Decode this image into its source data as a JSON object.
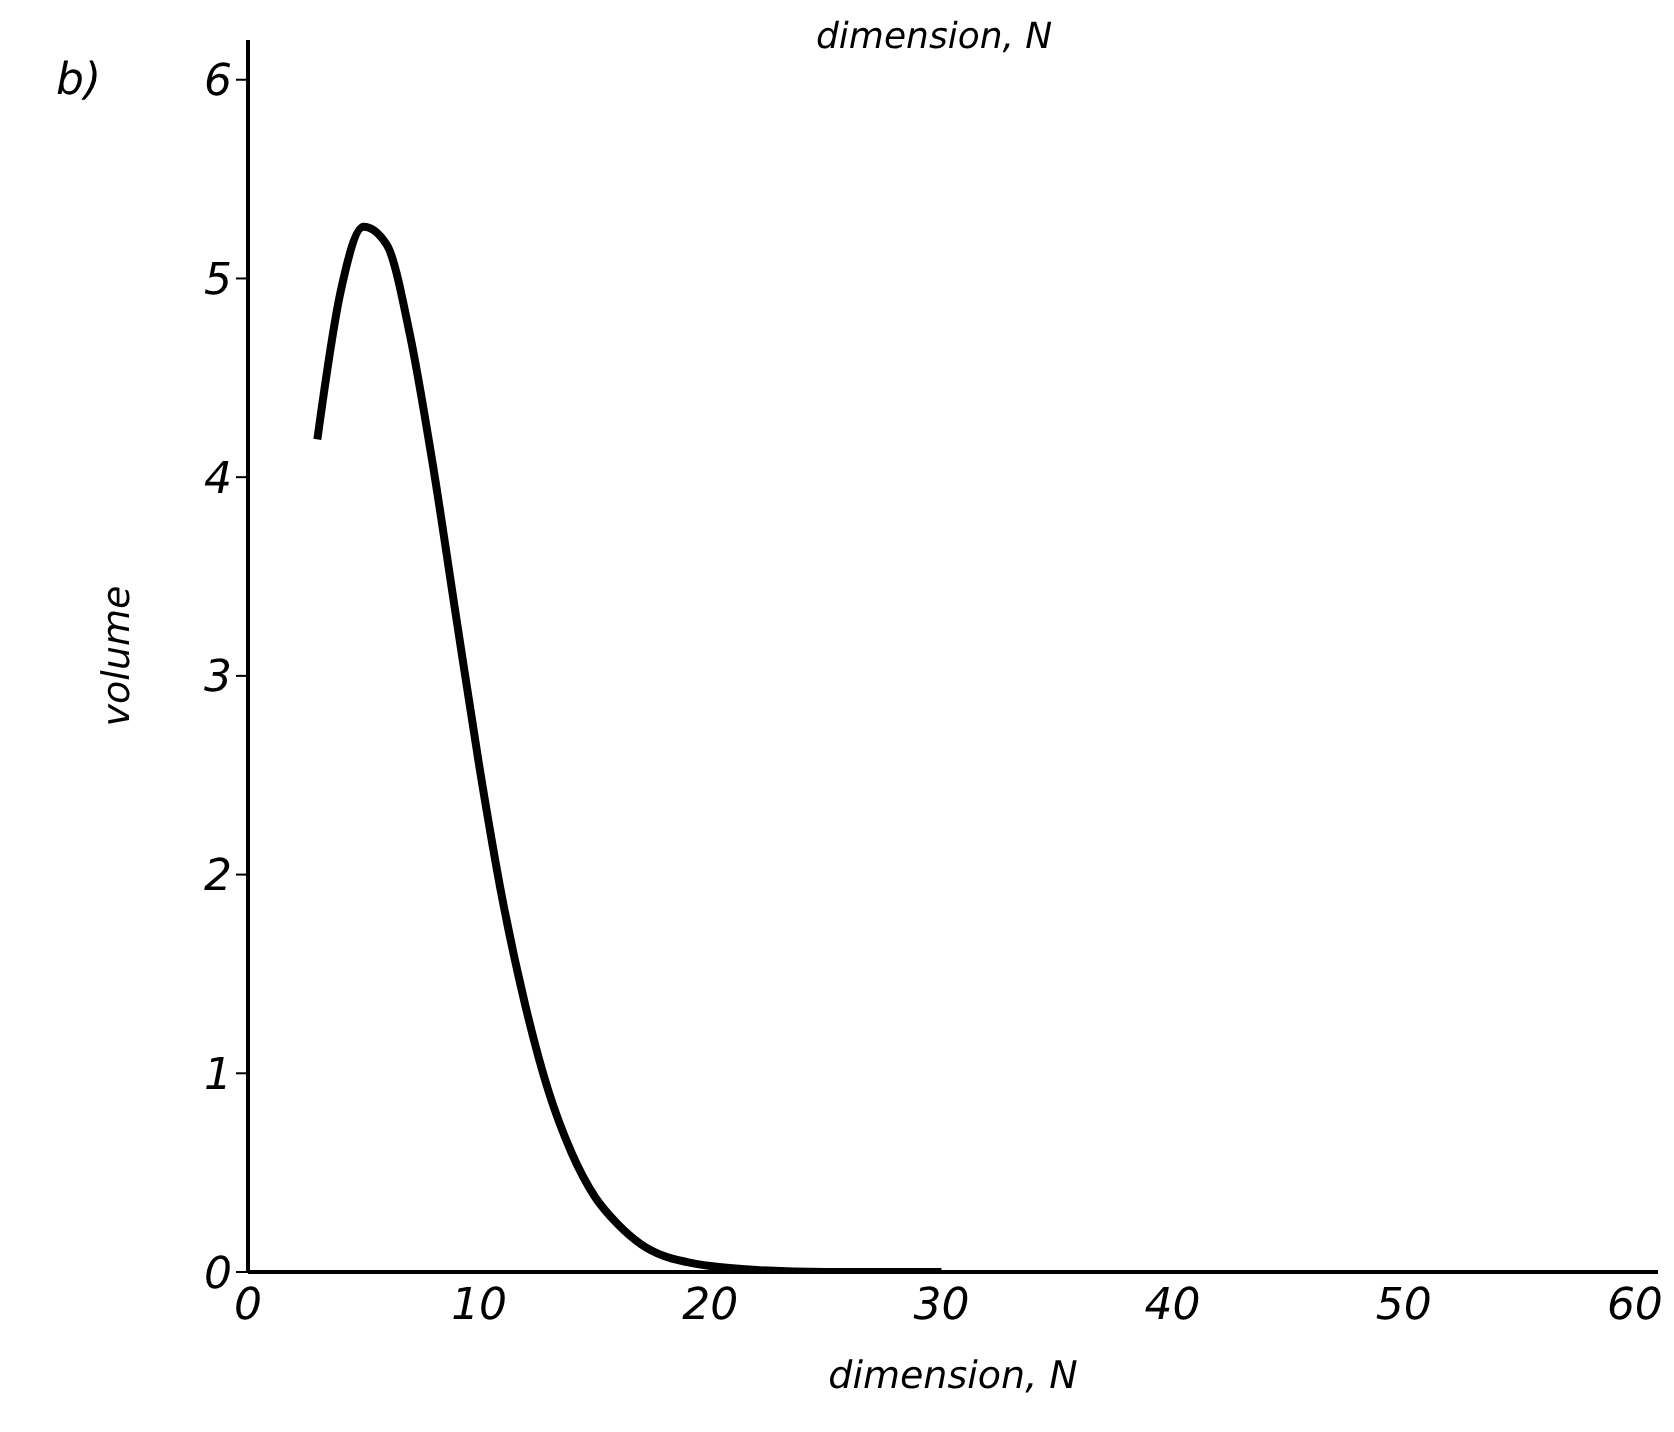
{
  "chart_data": {
    "type": "line",
    "title": "dimension, N",
    "xlabel": "dimension, N",
    "ylabel": "volume",
    "annotations": [
      "b)"
    ],
    "x": [
      3,
      4,
      5,
      6,
      7,
      8,
      9,
      10,
      11,
      12,
      13,
      14,
      15,
      16,
      17,
      18,
      19,
      20,
      22,
      25,
      30
    ],
    "series": [
      {
        "color": "#000000",
        "values": [
          4.19,
          4.93,
          5.26,
          5.17,
          4.72,
          4.06,
          3.3,
          2.55,
          1.88,
          1.34,
          0.91,
          0.6,
          0.38,
          0.24,
          0.14,
          0.08,
          0.05,
          0.03,
          0.01,
          0,
          0
        ]
      }
    ],
    "xlim": [
      0,
      61
    ],
    "xticks": [
      0,
      10,
      20,
      30,
      40,
      50,
      60
    ],
    "ylim": [
      0,
      6.2
    ],
    "yticks": [
      0,
      1,
      2,
      3,
      4,
      5,
      6
    ],
    "grid": false,
    "legend": false,
    "marker": "none",
    "line_style": "solid"
  }
}
